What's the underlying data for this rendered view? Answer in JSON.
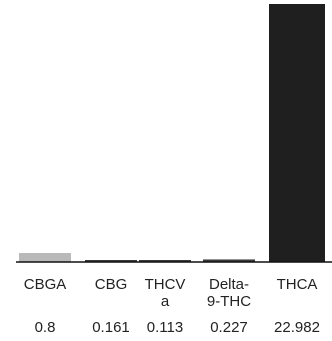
{
  "chart_data": {
    "type": "bar",
    "categories": [
      "CBGA",
      "CBG",
      "THCV a",
      "Delta- 9-THC",
      "THCA"
    ],
    "category_lines": [
      [
        "CBGA"
      ],
      [
        "CBG"
      ],
      [
        "THCV",
        "a"
      ],
      [
        "Delta-",
        "9-THC"
      ],
      [
        "THCA"
      ]
    ],
    "values": [
      0.8,
      0.161,
      0.113,
      0.227,
      22.982
    ],
    "value_labels": [
      "0.8",
      "0.161",
      "0.113",
      "0.227",
      "22.982"
    ],
    "ylim": [
      0,
      22.982
    ],
    "grid": false,
    "colors": {
      "bar_main": "#1f1f1f",
      "bar_small": "#b9b9b9",
      "axis": "#111111"
    }
  }
}
